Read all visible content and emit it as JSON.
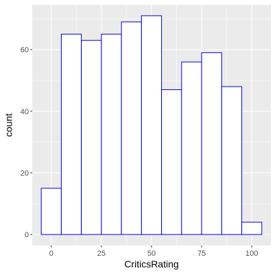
{
  "chart_data": {
    "type": "bar",
    "title": "",
    "xlabel": "CriticsRating",
    "ylabel": "count",
    "x_ticks": [
      0,
      25,
      50,
      75,
      100
    ],
    "y_ticks": [
      0,
      20,
      40,
      60
    ],
    "xlim": [
      -9.5,
      109.5
    ],
    "ylim": [
      -3.55,
      74.55
    ],
    "bin_width": 10,
    "bins": [
      {
        "center": 0,
        "count": 15
      },
      {
        "center": 10,
        "count": 65
      },
      {
        "center": 20,
        "count": 63
      },
      {
        "center": 30,
        "count": 65
      },
      {
        "center": 40,
        "count": 69
      },
      {
        "center": 50,
        "count": 71
      },
      {
        "center": 60,
        "count": 47
      },
      {
        "center": 70,
        "count": 56
      },
      {
        "center": 80,
        "count": 59
      },
      {
        "center": 90,
        "count": 48
      },
      {
        "center": 100,
        "count": 4
      }
    ],
    "grid": true,
    "colors": {
      "panel_background": "#EBEBEB",
      "grid": "#FFFFFF",
      "bar_fill": "#FFFFFF",
      "bar_outline": "#0000CD"
    }
  }
}
